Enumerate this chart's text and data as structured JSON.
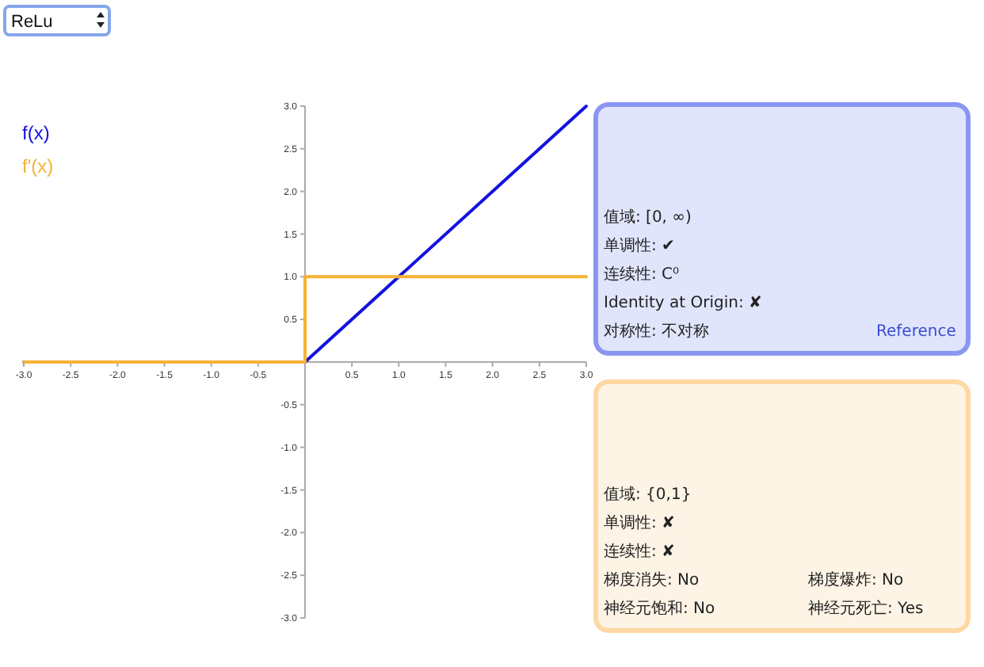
{
  "chart_data": [
    {
      "type": "line",
      "title": "ReLu",
      "series": [
        {
          "name": "f(x)",
          "color": "#1212e0",
          "x": [
            -3,
            0,
            3
          ],
          "values": [
            0,
            0,
            3
          ]
        },
        {
          "name": "f'(x)",
          "color": "#f5b335",
          "x": [
            -3,
            0,
            0,
            3
          ],
          "values": [
            0,
            0,
            1,
            1
          ]
        }
      ],
      "xlim": [
        -3,
        3
      ],
      "ylim": [
        -3,
        3
      ],
      "xticks": [
        {
          "value": -3,
          "label": "-3.0"
        },
        {
          "value": -2.5,
          "label": "-2.5"
        },
        {
          "value": -2,
          "label": "-2.0"
        },
        {
          "value": -1.5,
          "label": "-1.5"
        },
        {
          "value": -1,
          "label": "-1.0"
        },
        {
          "value": -0.5,
          "label": "-0.5"
        },
        {
          "value": 0.5,
          "label": "0.5"
        },
        {
          "value": 1,
          "label": "1.0"
        },
        {
          "value": 1.5,
          "label": "1.5"
        },
        {
          "value": 2,
          "label": "2.0"
        },
        {
          "value": 2.5,
          "label": "2.5"
        },
        {
          "value": 3,
          "label": "3.0"
        }
      ],
      "yticks": [
        {
          "value": -3,
          "label": "-3.0"
        },
        {
          "value": -2.5,
          "label": "-2.5"
        },
        {
          "value": -2,
          "label": "-2.0"
        },
        {
          "value": -1.5,
          "label": "-1.5"
        },
        {
          "value": -1,
          "label": "-1.0"
        },
        {
          "value": -0.5,
          "label": "-0.5"
        },
        {
          "value": 0.5,
          "label": "0.5"
        },
        {
          "value": 1,
          "label": "1.0"
        },
        {
          "value": 1.5,
          "label": "1.5"
        },
        {
          "value": 2,
          "label": "2.0"
        },
        {
          "value": 2.5,
          "label": "2.5"
        },
        {
          "value": 3,
          "label": "3.0"
        }
      ],
      "legend": "top left"
    },
    {
      "type": "other",
      "annotations": [
        "值域: [0, ∞)",
        "单调性: ✔",
        "连续性: C⁰",
        "Identity at Origin: ✘",
        "对称性: 不对称",
        "Reference"
      ]
    },
    {
      "type": "other",
      "annotations": [
        "值域: {0,1}",
        "单调性: ✘",
        "连续性: ✘",
        "梯度消失: No",
        "梯度爆炸: No",
        "神经元饱和: No",
        "神经元死亡: Yes"
      ]
    }
  ]
}
